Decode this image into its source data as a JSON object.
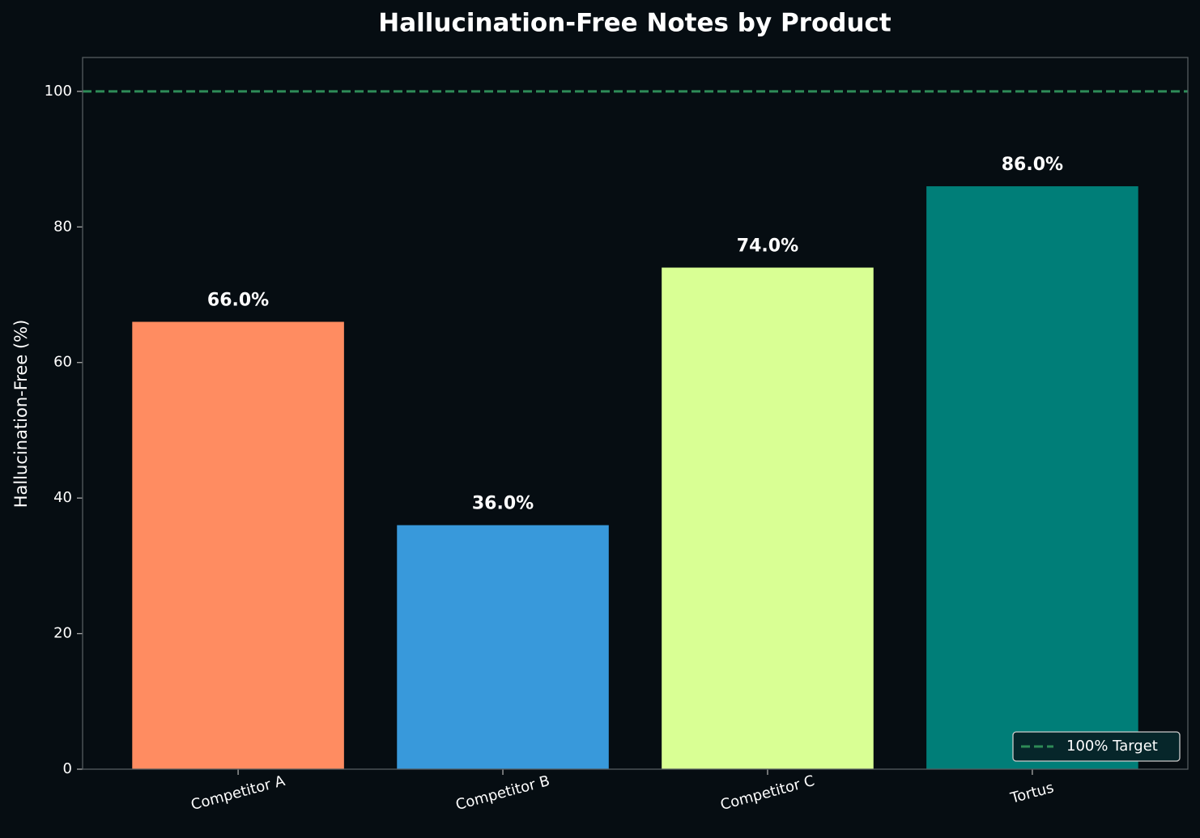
{
  "chart_data": {
    "type": "bar",
    "title": "Hallucination-Free Notes by Product",
    "y_label": "Hallucination-Free (%)",
    "categories": [
      "Competitor A",
      "Competitor B",
      "Competitor C",
      "Tortus"
    ],
    "values": [
      66,
      36,
      74,
      86
    ],
    "value_labels": [
      "66.0%",
      "36.0%",
      "74.0%",
      "86.0%"
    ],
    "colors": [
      "#ff8c61",
      "#3899db",
      "#d9ff94",
      "#007e78"
    ],
    "ylim": [
      0,
      105
    ],
    "yticks": [
      0,
      20,
      40,
      60,
      80,
      100
    ],
    "reference_line": {
      "value": 100,
      "label": "100% Target",
      "color": "#2e8b57"
    },
    "legend_position": "lower right"
  }
}
